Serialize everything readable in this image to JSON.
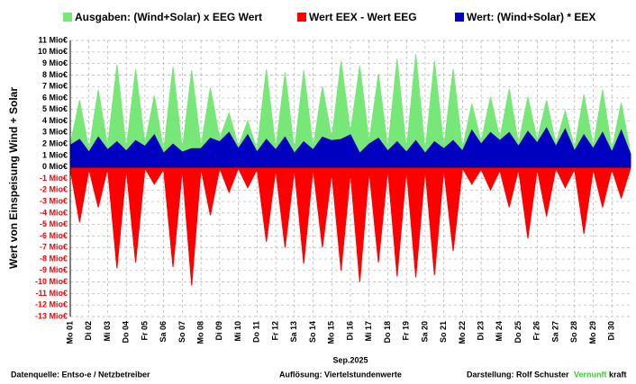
{
  "chart_data": {
    "type": "area",
    "ylabel": "Wert von Einspeisung Wind + Solar",
    "xlabel": "Sep.2025",
    "legend": "top",
    "grid": true,
    "xlim": [
      0,
      30
    ],
    "ylim": [
      -13,
      11
    ],
    "yticks": [
      {
        "value": -13,
        "label": "-13 Mio€"
      },
      {
        "value": -12,
        "label": "-12 Mio€"
      },
      {
        "value": -11,
        "label": "-11 Mio€"
      },
      {
        "value": -10,
        "label": "-10 Mio€"
      },
      {
        "value": -9,
        "label": "-9 Mio€"
      },
      {
        "value": -8,
        "label": "-8 Mio€"
      },
      {
        "value": -7,
        "label": "-7 Mio€"
      },
      {
        "value": -6,
        "label": "-6 Mio€"
      },
      {
        "value": -5,
        "label": "-5 Mio€"
      },
      {
        "value": -4,
        "label": "-4 Mio€"
      },
      {
        "value": -3,
        "label": "-3 Mio€"
      },
      {
        "value": -2,
        "label": "-2 Mio€"
      },
      {
        "value": -1,
        "label": "-1 Mio€"
      },
      {
        "value": 0,
        "label": "0 Mio€"
      },
      {
        "value": 1,
        "label": "1 Mio€"
      },
      {
        "value": 2,
        "label": "2 Mio€"
      },
      {
        "value": 3,
        "label": "3 Mio€"
      },
      {
        "value": 4,
        "label": "4 Mio€"
      },
      {
        "value": 5,
        "label": "5 Mio€"
      },
      {
        "value": 6,
        "label": "6 Mio€"
      },
      {
        "value": 7,
        "label": "7 Mio€"
      },
      {
        "value": 8,
        "label": "8 Mio€"
      },
      {
        "value": 9,
        "label": "9 Mio€"
      },
      {
        "value": 10,
        "label": "10 Mio€"
      },
      {
        "value": 11,
        "label": "11 Mio€"
      }
    ],
    "xticks": [
      {
        "value": 0,
        "label": "Mo 01"
      },
      {
        "value": 1,
        "label": "Di 02"
      },
      {
        "value": 2,
        "label": "Mi 03"
      },
      {
        "value": 3,
        "label": "Do 04"
      },
      {
        "value": 4,
        "label": "Fr 05"
      },
      {
        "value": 5,
        "label": "Sa 06"
      },
      {
        "value": 6,
        "label": "So 07"
      },
      {
        "value": 7,
        "label": "Mo 08"
      },
      {
        "value": 8,
        "label": "Di 09"
      },
      {
        "value": 9,
        "label": "Mi 10"
      },
      {
        "value": 10,
        "label": "Do 11"
      },
      {
        "value": 11,
        "label": "Fr 12"
      },
      {
        "value": 12,
        "label": "Sa 13"
      },
      {
        "value": 13,
        "label": "So 14"
      },
      {
        "value": 14,
        "label": "Mo 15"
      },
      {
        "value": 15,
        "label": "Di 16"
      },
      {
        "value": 16,
        "label": "Mi 17"
      },
      {
        "value": 17,
        "label": "Do 18"
      },
      {
        "value": 18,
        "label": "Fr 19"
      },
      {
        "value": 19,
        "label": "Sa 20"
      },
      {
        "value": 20,
        "label": "So 21"
      },
      {
        "value": 21,
        "label": "Mo 22"
      },
      {
        "value": 22,
        "label": "Di 23"
      },
      {
        "value": 23,
        "label": "Mi 24"
      },
      {
        "value": 24,
        "label": "Do 25"
      },
      {
        "value": 25,
        "label": "Fr 26"
      },
      {
        "value": 26,
        "label": "Sa 27"
      },
      {
        "value": 27,
        "label": "So 28"
      },
      {
        "value": 28,
        "label": "Mo 29"
      },
      {
        "value": 29,
        "label": "Di 30"
      }
    ],
    "x": [
      0,
      0.5,
      1,
      1.5,
      2,
      2.5,
      3,
      3.5,
      4,
      4.5,
      5,
      5.5,
      6,
      6.5,
      7,
      7.5,
      8,
      8.5,
      9,
      9.5,
      10,
      10.5,
      11,
      11.5,
      12,
      12.5,
      13,
      13.5,
      14,
      14.5,
      15,
      15.5,
      16,
      16.5,
      17,
      17.5,
      18,
      18.5,
      19,
      19.5,
      20,
      20.5,
      21,
      21.5,
      22,
      22.5,
      23,
      23.5,
      24,
      24.5,
      25,
      25.5,
      26,
      26.5,
      27,
      27.5,
      28,
      28.5,
      29,
      29.5,
      30
    ],
    "series": [
      {
        "name": "Ausgaben: (Wind+Solar) x EEG Wert",
        "color": "#77e877",
        "values": [
          2.0,
          5.8,
          1.5,
          6.7,
          1.8,
          8.9,
          1.6,
          8.5,
          2.0,
          6.2,
          1.4,
          8.7,
          1.5,
          8.4,
          1.8,
          6.9,
          2.5,
          4.7,
          1.8,
          4.0,
          1.5,
          8.5,
          1.6,
          8.2,
          1.4,
          8.4,
          1.7,
          7.0,
          2.5,
          9.2,
          3.0,
          8.8,
          2.2,
          8.1,
          1.6,
          9.4,
          1.5,
          9.8,
          1.4,
          9.2,
          1.8,
          8.5,
          1.6,
          5.5,
          2.2,
          6.1,
          2.5,
          6.8,
          2.0,
          6.1,
          2.3,
          5.8,
          2.0,
          4.9,
          1.6,
          6.3,
          1.8,
          6.7,
          1.5,
          5.6,
          1.2
        ]
      },
      {
        "name": "Wert EEX - Wert EEG",
        "color": "#ff0000",
        "values": [
          -0.2,
          -4.8,
          -0.2,
          -3.5,
          -0.1,
          -8.8,
          -0.2,
          -8.3,
          -0.1,
          -1.5,
          -0.2,
          -8.7,
          -0.2,
          -10.3,
          -0.1,
          -4.2,
          -0.1,
          -2.2,
          -0.1,
          -1.8,
          -0.2,
          -6.5,
          -0.2,
          -7.0,
          -0.2,
          -8.4,
          -0.1,
          -7.0,
          -0.5,
          -9.0,
          -0.5,
          -10.0,
          -0.3,
          -8.3,
          -0.2,
          -9.5,
          -0.2,
          -9.6,
          -0.2,
          -9.4,
          -0.2,
          -7.3,
          -0.1,
          -1.5,
          -0.2,
          -2.0,
          -0.3,
          -3.5,
          -0.2,
          -6.2,
          -0.2,
          -4.3,
          -0.1,
          -1.8,
          -0.2,
          -5.8,
          -0.2,
          -3.5,
          -0.2,
          -2.7,
          -0.1
        ]
      },
      {
        "name": "Wert: (Wind+Solar) * EEX",
        "color": "#0000c0",
        "values": [
          1.9,
          2.4,
          1.3,
          2.6,
          1.5,
          2.2,
          1.4,
          2.3,
          1.8,
          2.8,
          1.2,
          2.0,
          1.3,
          1.6,
          1.6,
          2.5,
          2.2,
          3.0,
          1.6,
          2.8,
          1.3,
          2.4,
          1.5,
          2.6,
          1.2,
          2.2,
          1.5,
          2.6,
          2.3,
          2.4,
          2.8,
          1.2,
          2.0,
          2.5,
          1.4,
          2.2,
          1.3,
          2.3,
          1.2,
          2.2,
          1.6,
          2.3,
          1.4,
          3.2,
          2.0,
          3.0,
          2.3,
          3.0,
          1.8,
          3.1,
          2.1,
          3.4,
          1.8,
          3.3,
          1.4,
          2.8,
          1.6,
          3.0,
          1.3,
          3.2,
          1.1
        ]
      }
    ],
    "footer": {
      "source": "Datenquelle: Entso-e  / Netzbetreiber",
      "resolution": "Auflösung: Viertelstundenwerte",
      "author": "Darstellung:  Rolf Schuster",
      "brand_a": "Vernunft",
      "brand_b": "kraft"
    }
  }
}
